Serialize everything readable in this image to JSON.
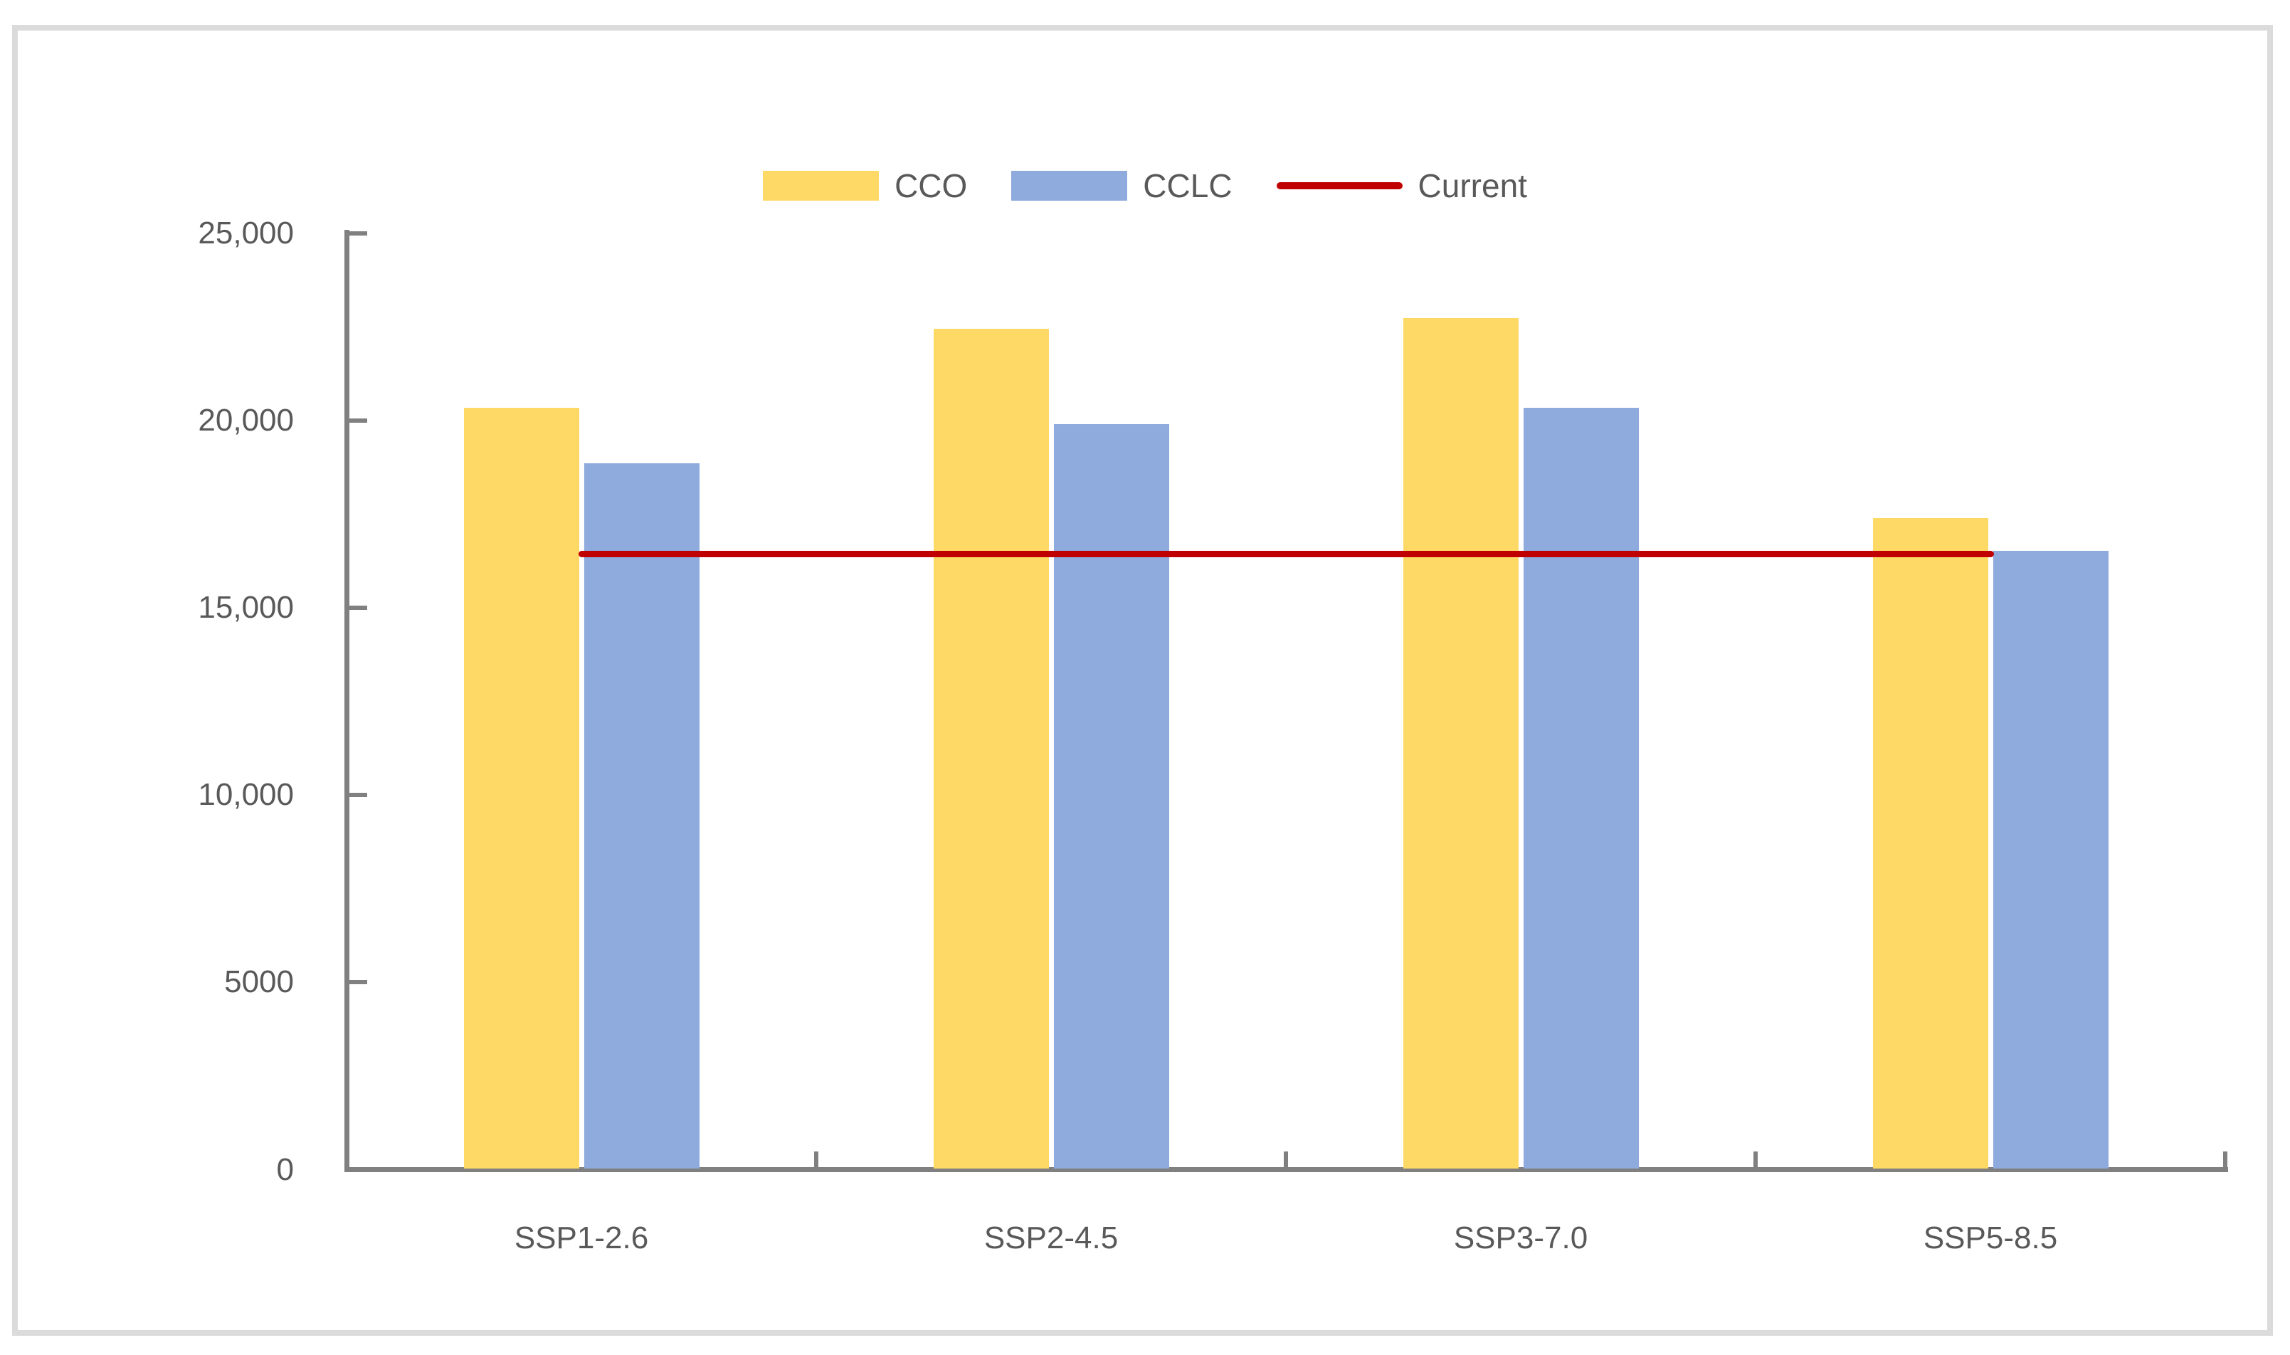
{
  "chart_data": {
    "type": "bar",
    "title": "",
    "categories": [
      "SSP1-2.6",
      "SSP2-4.5",
      "SSP3-7.0",
      "SSP5-8.5"
    ],
    "series": [
      {
        "name": "CCO",
        "color": "#FFD966",
        "values": [
          20340,
          22450,
          22740,
          17400
        ]
      },
      {
        "name": "CCLC",
        "color": "#8FAADC",
        "values": [
          18860,
          19900,
          20340,
          16520
        ]
      }
    ],
    "reference_line": {
      "name": "Current",
      "color": "#C00000",
      "value": 16430
    },
    "y_axis": {
      "min": 0,
      "max": 25000,
      "tick_interval": 5000,
      "tick_labels": [
        "0",
        "5000",
        "10,000",
        "15,000",
        "20,000",
        "25,000"
      ]
    },
    "x_axis": {
      "label": ""
    },
    "legend_position": "top-center",
    "grid": false,
    "colors": {
      "axis": "#808080",
      "text": "#595959",
      "frame_border": "#DBDBDB",
      "background": "#FFFFFF"
    }
  }
}
